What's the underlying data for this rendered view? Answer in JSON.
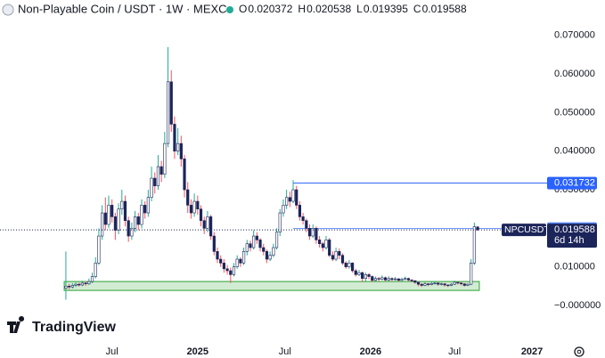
{
  "chart_data": {
    "type": "candlestick",
    "title": "Non-Playable Coin / USDT · 1W · MEXC",
    "ohlc_keys": [
      "O",
      "H",
      "L",
      "C"
    ],
    "symbol": "NPCUSDT",
    "countdown": "6d 14h",
    "brand": "TradingView",
    "up_wick_color": "#22ab94",
    "down_wick_color": "#f7525f",
    "body_color": "#1c2559",
    "xlim": [
      -20,
      145
    ],
    "xticks": [
      {
        "value": 14,
        "label": "Jul"
      },
      {
        "value": 40,
        "label": "2025"
      },
      {
        "value": 66.5,
        "label": "Jul"
      },
      {
        "value": 92.5,
        "label": "2026"
      },
      {
        "value": 118,
        "label": "Jul"
      },
      {
        "value": 141.5,
        "label": "2027"
      }
    ],
    "ylim": [
      -0.0097,
      0.0792
    ],
    "yticks": [
      {
        "value": 0.07,
        "label": "0.070000"
      },
      {
        "value": 0.06,
        "label": "0.060000"
      },
      {
        "value": 0.05,
        "label": "0.050000"
      },
      {
        "value": 0.04,
        "label": "0.040000"
      },
      {
        "value": 0.03,
        "label": "0.030000"
      },
      {
        "value": 0.02,
        "label": "0.020000"
      },
      {
        "value": 0.01,
        "label": "0.010000"
      },
      {
        "value": 0,
        "label": "−0.000000"
      }
    ],
    "levels": [
      {
        "value": 0.031732,
        "start": 69,
        "color": "#2962ff"
      },
      {
        "value": 0.019943,
        "start": 69,
        "color": "#5b8cff"
      }
    ],
    "zone": {
      "top": 0.0062,
      "bottom": 0.0039,
      "start": -0.5,
      "end": 125.5,
      "color": "#4caf50"
    },
    "ohlc": [
      [
        0.0045,
        0.014,
        0.0015,
        0.005
      ],
      [
        0.005,
        0.0056,
        0.0042,
        0.0048
      ],
      [
        0.0048,
        0.0058,
        0.0044,
        0.0052
      ],
      [
        0.0052,
        0.006,
        0.0048,
        0.0055
      ],
      [
        0.0055,
        0.0059,
        0.0049,
        0.0053
      ],
      [
        0.0053,
        0.0064,
        0.005,
        0.0058
      ],
      [
        0.0058,
        0.0062,
        0.0051,
        0.0056
      ],
      [
        0.0056,
        0.007,
        0.0053,
        0.0062
      ],
      [
        0.0062,
        0.0085,
        0.0058,
        0.0075
      ],
      [
        0.0075,
        0.0125,
        0.007,
        0.011
      ],
      [
        0.011,
        0.02,
        0.0105,
        0.018
      ],
      [
        0.018,
        0.026,
        0.017,
        0.024
      ],
      [
        0.024,
        0.028,
        0.0195,
        0.021
      ],
      [
        0.021,
        0.0285,
        0.02,
        0.026
      ],
      [
        0.026,
        0.0275,
        0.0215,
        0.023
      ],
      [
        0.023,
        0.024,
        0.017,
        0.0195
      ],
      [
        0.0195,
        0.0265,
        0.0185,
        0.025
      ],
      [
        0.025,
        0.03,
        0.0235,
        0.027
      ],
      [
        0.027,
        0.0285,
        0.0205,
        0.022
      ],
      [
        0.022,
        0.023,
        0.0165,
        0.018
      ],
      [
        0.018,
        0.0215,
        0.017,
        0.02
      ],
      [
        0.02,
        0.0245,
        0.019,
        0.023
      ],
      [
        0.023,
        0.024,
        0.0195,
        0.021
      ],
      [
        0.021,
        0.0275,
        0.02,
        0.026
      ],
      [
        0.026,
        0.027,
        0.0225,
        0.024
      ],
      [
        0.024,
        0.03,
        0.023,
        0.028
      ],
      [
        0.028,
        0.036,
        0.027,
        0.033
      ],
      [
        0.033,
        0.0345,
        0.029,
        0.031
      ],
      [
        0.031,
        0.039,
        0.03,
        0.036
      ],
      [
        0.036,
        0.0375,
        0.032,
        0.034
      ],
      [
        0.034,
        0.045,
        0.033,
        0.042
      ],
      [
        0.042,
        0.067,
        0.041,
        0.058
      ],
      [
        0.058,
        0.061,
        0.045,
        0.047
      ],
      [
        0.047,
        0.049,
        0.038,
        0.04
      ],
      [
        0.04,
        0.046,
        0.039,
        0.042
      ],
      [
        0.042,
        0.044,
        0.036,
        0.038
      ],
      [
        0.038,
        0.039,
        0.028,
        0.03
      ],
      [
        0.03,
        0.032,
        0.024,
        0.026
      ],
      [
        0.026,
        0.0275,
        0.0225,
        0.024
      ],
      [
        0.024,
        0.029,
        0.023,
        0.027
      ],
      [
        0.027,
        0.0285,
        0.0235,
        0.025
      ],
      [
        0.025,
        0.026,
        0.0205,
        0.022
      ],
      [
        0.022,
        0.023,
        0.0185,
        0.02
      ],
      [
        0.02,
        0.0245,
        0.019,
        0.023
      ],
      [
        0.023,
        0.0235,
        0.017,
        0.018
      ],
      [
        0.018,
        0.019,
        0.013,
        0.014
      ],
      [
        0.014,
        0.015,
        0.011,
        0.012
      ],
      [
        0.012,
        0.013,
        0.01,
        0.011
      ],
      [
        0.011,
        0.012,
        0.0085,
        0.0095
      ],
      [
        0.0095,
        0.0105,
        0.008,
        0.009
      ],
      [
        0.009,
        0.0098,
        0.0058,
        0.008
      ],
      [
        0.008,
        0.011,
        0.0075,
        0.01
      ],
      [
        0.01,
        0.013,
        0.0095,
        0.012
      ],
      [
        0.012,
        0.0125,
        0.01,
        0.011
      ],
      [
        0.011,
        0.015,
        0.0105,
        0.014
      ],
      [
        0.014,
        0.017,
        0.013,
        0.016
      ],
      [
        0.016,
        0.0168,
        0.014,
        0.015
      ],
      [
        0.015,
        0.0195,
        0.0145,
        0.018
      ],
      [
        0.018,
        0.019,
        0.016,
        0.017
      ],
      [
        0.017,
        0.0175,
        0.014,
        0.015
      ],
      [
        0.015,
        0.016,
        0.013,
        0.014
      ],
      [
        0.014,
        0.0145,
        0.011,
        0.012
      ],
      [
        0.012,
        0.014,
        0.0115,
        0.013
      ],
      [
        0.013,
        0.016,
        0.0125,
        0.015
      ],
      [
        0.015,
        0.02,
        0.0145,
        0.019
      ],
      [
        0.019,
        0.025,
        0.018,
        0.024
      ],
      [
        0.024,
        0.0275,
        0.023,
        0.026
      ],
      [
        0.026,
        0.03,
        0.025,
        0.028
      ],
      [
        0.028,
        0.0295,
        0.0255,
        0.027
      ],
      [
        0.027,
        0.0325,
        0.0265,
        0.03
      ],
      [
        0.03,
        0.031,
        0.025,
        0.026
      ],
      [
        0.026,
        0.027,
        0.022,
        0.023
      ],
      [
        0.023,
        0.024,
        0.021,
        0.022
      ],
      [
        0.022,
        0.0225,
        0.019,
        0.02
      ],
      [
        0.02,
        0.021,
        0.017,
        0.018
      ],
      [
        0.018,
        0.021,
        0.0175,
        0.02
      ],
      [
        0.02,
        0.0205,
        0.016,
        0.017
      ],
      [
        0.017,
        0.018,
        0.015,
        0.016
      ],
      [
        0.016,
        0.0165,
        0.014,
        0.015
      ],
      [
        0.015,
        0.018,
        0.0145,
        0.017
      ],
      [
        0.017,
        0.0175,
        0.0125,
        0.013
      ],
      [
        0.013,
        0.014,
        0.0115,
        0.012
      ],
      [
        0.012,
        0.015,
        0.0115,
        0.014
      ],
      [
        0.014,
        0.0148,
        0.012,
        0.013
      ],
      [
        0.013,
        0.0135,
        0.0105,
        0.011
      ],
      [
        0.011,
        0.0115,
        0.0095,
        0.01
      ],
      [
        0.01,
        0.0118,
        0.0095,
        0.011
      ],
      [
        0.011,
        0.0112,
        0.0085,
        0.009
      ],
      [
        0.009,
        0.0095,
        0.0075,
        0.008
      ],
      [
        0.008,
        0.0092,
        0.0076,
        0.0085
      ],
      [
        0.0085,
        0.0088,
        0.006,
        0.007
      ],
      [
        0.007,
        0.0085,
        0.0062,
        0.008
      ],
      [
        0.008,
        0.0084,
        0.0068,
        0.0075
      ],
      [
        0.0075,
        0.0078,
        0.006,
        0.0065
      ],
      [
        0.0065,
        0.0075,
        0.0062,
        0.007
      ],
      [
        0.007,
        0.0074,
        0.0063,
        0.0068
      ],
      [
        0.0068,
        0.0078,
        0.0065,
        0.0072
      ],
      [
        0.0072,
        0.0075,
        0.0062,
        0.0066
      ],
      [
        0.0066,
        0.0076,
        0.0063,
        0.007
      ],
      [
        0.007,
        0.0073,
        0.0062,
        0.0067
      ],
      [
        0.0067,
        0.0074,
        0.0064,
        0.0069
      ],
      [
        0.0069,
        0.0071,
        0.0061,
        0.0065
      ],
      [
        0.0065,
        0.0072,
        0.0062,
        0.0068
      ],
      [
        0.0068,
        0.0075,
        0.0065,
        0.007
      ],
      [
        0.007,
        0.0072,
        0.0062,
        0.0066
      ],
      [
        0.0066,
        0.0068,
        0.006,
        0.0064
      ],
      [
        0.0064,
        0.0066,
        0.0056,
        0.006
      ],
      [
        0.006,
        0.0062,
        0.005,
        0.0055
      ],
      [
        0.0055,
        0.0058,
        0.0048,
        0.0052
      ],
      [
        0.0052,
        0.006,
        0.005,
        0.0056
      ],
      [
        0.0056,
        0.0058,
        0.005,
        0.0054
      ],
      [
        0.0054,
        0.0062,
        0.0052,
        0.0057
      ],
      [
        0.0057,
        0.0063,
        0.0054,
        0.0058
      ],
      [
        0.0058,
        0.006,
        0.0051,
        0.0055
      ],
      [
        0.0055,
        0.0059,
        0.0052,
        0.0056
      ],
      [
        0.0056,
        0.0058,
        0.0049,
        0.0053
      ],
      [
        0.0053,
        0.0055,
        0.0048,
        0.0052
      ],
      [
        0.0052,
        0.0058,
        0.005,
        0.0055
      ],
      [
        0.0055,
        0.0064,
        0.0053,
        0.006
      ],
      [
        0.006,
        0.0062,
        0.0054,
        0.0058
      ],
      [
        0.0058,
        0.006,
        0.0052,
        0.0056
      ],
      [
        0.0056,
        0.0058,
        0.0049,
        0.0052
      ],
      [
        0.0052,
        0.0058,
        0.005,
        0.0055
      ],
      [
        0.0055,
        0.012,
        0.0053,
        0.011
      ],
      [
        0.011,
        0.0215,
        0.0105,
        0.0204
      ],
      [
        0.020372,
        0.020538,
        0.019395,
        0.019588
      ]
    ]
  }
}
